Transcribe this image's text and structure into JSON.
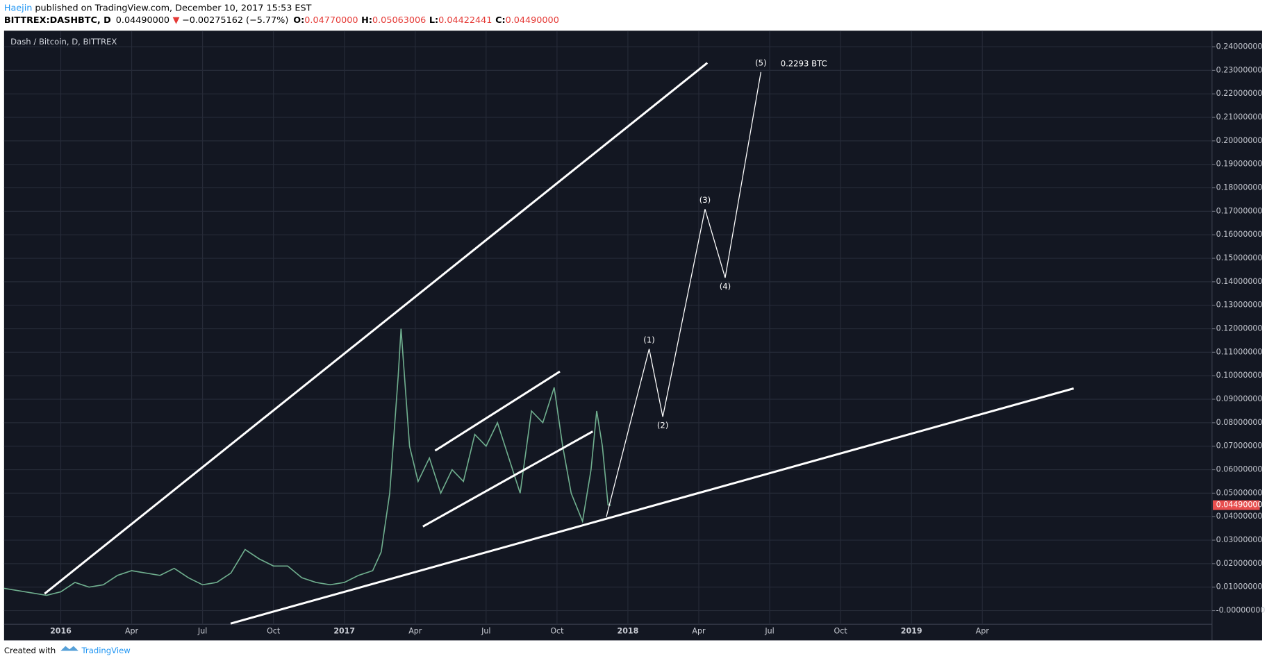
{
  "chart_data": {
    "type": "line",
    "author": "Haejin",
    "published": " published on TradingView.com, December 10, 2017 15:53 EST",
    "symbol": "BITTREX:DASHBTC, D",
    "last": "0.04490000",
    "change_arrow": "▼",
    "change": "−0.00275162 (−5.77%)",
    "ohlc": [
      {
        "label": "O:",
        "value": "0.04770000"
      },
      {
        "label": "H:",
        "value": "0.05063006"
      },
      {
        "label": "L:",
        "value": "0.04422441"
      },
      {
        "label": "C:",
        "value": "0.04490000"
      }
    ],
    "title": "Dash / Bitcoin, D, BITTREX",
    "footer": "Created with",
    "brand": "TradingView",
    "series": [
      {
        "name": "DASHBTC",
        "color": "#6fae8e",
        "x": [
          2015.8,
          2015.9,
          2015.95,
          2016.0,
          2016.05,
          2016.1,
          2016.15,
          2016.2,
          2016.25,
          2016.3,
          2016.35,
          2016.4,
          2016.45,
          2016.5,
          2016.55,
          2016.6,
          2016.65,
          2016.7,
          2016.75,
          2016.8,
          2016.85,
          2016.9,
          2016.95,
          2017.0,
          2017.05,
          2017.1,
          2017.13,
          2017.16,
          2017.19,
          2017.2,
          2017.23,
          2017.26,
          2017.3,
          2017.34,
          2017.38,
          2017.42,
          2017.46,
          2017.5,
          2017.54,
          2017.58,
          2017.62,
          2017.66,
          2017.7,
          2017.74,
          2017.77,
          2017.8,
          2017.84,
          2017.87,
          2017.89,
          2017.91,
          2017.93,
          2017.94
        ],
        "values": [
          0.0095,
          0.0075,
          0.0065,
          0.008,
          0.012,
          0.01,
          0.011,
          0.015,
          0.017,
          0.016,
          0.015,
          0.018,
          0.014,
          0.011,
          0.012,
          0.016,
          0.026,
          0.022,
          0.019,
          0.019,
          0.014,
          0.012,
          0.011,
          0.012,
          0.015,
          0.017,
          0.025,
          0.05,
          0.1,
          0.12,
          0.07,
          0.055,
          0.065,
          0.05,
          0.06,
          0.055,
          0.075,
          0.07,
          0.08,
          0.065,
          0.05,
          0.085,
          0.08,
          0.095,
          0.07,
          0.05,
          0.038,
          0.06,
          0.085,
          0.07,
          0.045,
          0.0449
        ]
      }
    ],
    "price_label": {
      "value": 0.0449,
      "label": "0.04490000"
    },
    "trendlines": [
      {
        "x": [
          2015.943,
          2018.28
        ],
        "y": [
          0.0072,
          0.2332
        ]
      },
      {
        "x": [
          2016.599,
          2019.572
        ],
        "y": [
          -0.0055,
          0.0946
        ]
      },
      {
        "x": [
          2017.32,
          2017.76
        ],
        "y": [
          0.0681,
          0.1018
        ]
      },
      {
        "x": [
          2017.277,
          2017.876
        ],
        "y": [
          0.0358,
          0.0763
        ]
      }
    ],
    "wave": {
      "x": [
        2017.924,
        2018.075,
        2018.123,
        2018.272,
        2018.343,
        2018.469
      ],
      "values": [
        0.0399,
        0.1114,
        0.0825,
        0.1709,
        0.1417,
        0.2293
      ],
      "labels": [
        null,
        "(1)",
        "(2)",
        "(3)",
        "(4)",
        "(5)"
      ]
    },
    "annotation": "0.2293 BTC",
    "xlim": [
      2015.8,
      2020.06
    ],
    "ylim": [
      -0.0058,
      0.2469
    ],
    "xticks": [
      {
        "value": 2016,
        "label": "2016"
      },
      {
        "value": 2016.25,
        "label": "Apr"
      },
      {
        "value": 2016.5,
        "label": "Jul"
      },
      {
        "value": 2016.75,
        "label": "Oct"
      },
      {
        "value": 2017,
        "label": "2017"
      },
      {
        "value": 2017.25,
        "label": "Apr"
      },
      {
        "value": 2017.5,
        "label": "Jul"
      },
      {
        "value": 2017.75,
        "label": "Oct"
      },
      {
        "value": 2018,
        "label": "2018"
      },
      {
        "value": 2018.25,
        "label": "Apr"
      },
      {
        "value": 2018.5,
        "label": "Jul"
      },
      {
        "value": 2018.75,
        "label": "Oct"
      },
      {
        "value": 2019,
        "label": "2019"
      },
      {
        "value": 2019.25,
        "label": "Apr"
      }
    ],
    "yticks": [
      {
        "value": 0.24,
        "label": "0.24000000"
      },
      {
        "value": 0.23,
        "label": "0.23000000"
      },
      {
        "value": 0.22,
        "label": "0.22000000"
      },
      {
        "value": 0.21,
        "label": "0.21000000"
      },
      {
        "value": 0.2,
        "label": "0.20000000"
      },
      {
        "value": 0.19,
        "label": "0.19000000"
      },
      {
        "value": 0.18,
        "label": "0.18000000"
      },
      {
        "value": 0.17,
        "label": "0.17000000"
      },
      {
        "value": 0.16,
        "label": "0.16000000"
      },
      {
        "value": 0.15,
        "label": "0.15000000"
      },
      {
        "value": 0.14,
        "label": "0.14000000"
      },
      {
        "value": 0.13,
        "label": "0.13000000"
      },
      {
        "value": 0.12,
        "label": "0.12000000"
      },
      {
        "value": 0.11,
        "label": "0.11000000"
      },
      {
        "value": 0.1,
        "label": "0.10000000"
      },
      {
        "value": 0.09,
        "label": "0.09000000"
      },
      {
        "value": 0.08,
        "label": "0.08000000"
      },
      {
        "value": 0.07,
        "label": "0.07000000"
      },
      {
        "value": 0.06,
        "label": "0.06000000"
      },
      {
        "value": 0.05,
        "label": "0.05000000"
      },
      {
        "value": 0.04,
        "label": "0.04000000"
      },
      {
        "value": 0.03,
        "label": "0.03000000"
      },
      {
        "value": 0.02,
        "label": "0.02000000"
      },
      {
        "value": 0.01,
        "label": "0.01000000"
      },
      {
        "value": 0,
        "label": "-0.00000000"
      }
    ],
    "grid": true
  }
}
